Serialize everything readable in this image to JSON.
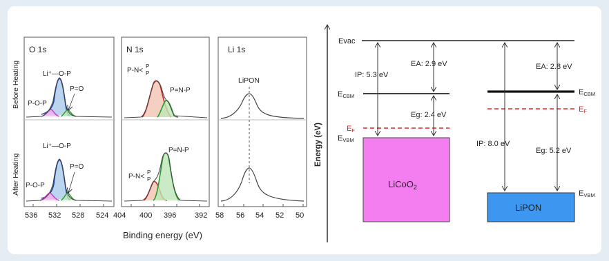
{
  "spectra": {
    "panels": [
      {
        "title": "O 1s",
        "ticks": [
          "536",
          "532",
          "528",
          "524"
        ]
      },
      {
        "title": "N 1s",
        "ticks": [
          "404",
          "400",
          "396",
          "392"
        ]
      },
      {
        "title": "Li 1s",
        "ticks": [
          "58",
          "56",
          "54",
          "52",
          "50"
        ]
      }
    ],
    "row_labels": [
      "Before Heating",
      "After Heating"
    ],
    "x_axis_label": "Binding energy (eV)",
    "peak_labels": {
      "li_o_p_top": "Li⁺—O-P",
      "p_eq_o_top": "P=O",
      "p_o_p_top": "P-O-P",
      "li_o_p_bottom": "Li⁺—O-P",
      "p_eq_o_bottom": "P=O",
      "p_o_p_bottom": "P-O-P",
      "pn_top": "P-N<",
      "pn_sub_p": "P",
      "pne_top": "P=N-P",
      "pn_bottom": "P-N<",
      "pne_bottom": "P=N-P",
      "lipon": "LiPON"
    }
  },
  "band_diagram": {
    "y_axis_label": "Energy (eV)",
    "evac": "Evac",
    "e_cbm_main": "E",
    "e_cbm_sub": "CBM",
    "e_vbm_main": "E",
    "e_vbm_sub": "VBM",
    "e_f_main": "E",
    "e_f_sub": "F",
    "licoo2": {
      "name_main": "LiCoO",
      "name_sub": "2",
      "ip": "IP: 5.3 eV",
      "ea": "EA: 2.9 eV",
      "eg": "Eg: 2.4 eV",
      "color": "#f47ef0"
    },
    "lipon": {
      "name": "LiPON",
      "ip": "IP: 8.0 eV",
      "ea": "EA: 2.8 eV",
      "eg": "Eg: 5.2 eV",
      "color": "#3d97f0"
    },
    "fermi_color": "#e02020"
  }
}
